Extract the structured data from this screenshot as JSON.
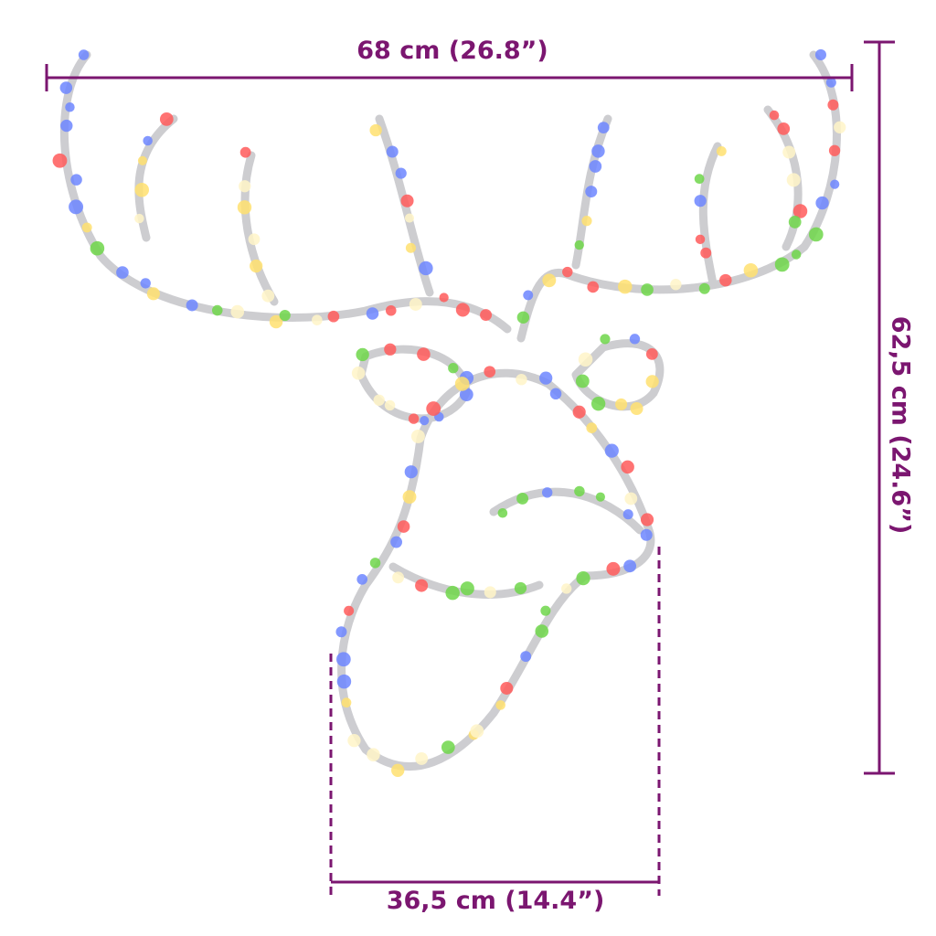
{
  "dimensions": {
    "width": "68 cm (26.8”)",
    "height": "62,5 cm (24.6”)",
    "base_width": "36,5 cm (14.4”)"
  },
  "colors": {
    "dimension_line": "#7b1670",
    "wire_frame": "#c8c8cc",
    "lights": [
      "#ff5a5a",
      "#6fd64a",
      "#6d86ff",
      "#ffe070",
      "#fff4c8"
    ]
  },
  "product_image": "reindeer-head-led-wire-frame"
}
